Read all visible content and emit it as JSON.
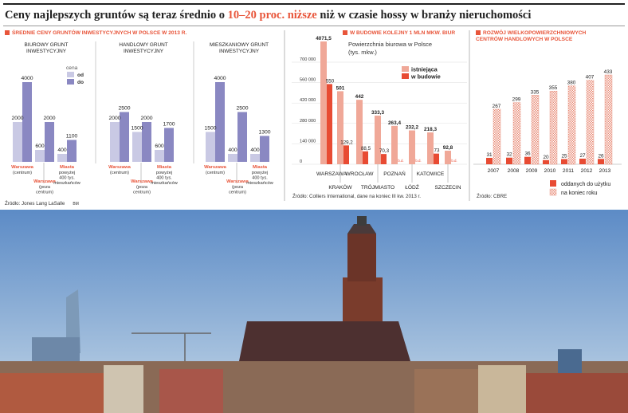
{
  "headline": {
    "before": "Ceny najlepszych gruntów są teraz średnio o ",
    "highlight": "10–20 proc. niższe",
    "after": " niż w czasie hossy w branży nieruchomości"
  },
  "sources": {
    "left": "Źródło: Jones Lang LaSalle",
    "left_tag": "BM",
    "middle": "Źródło: Colliers International, dane na koniec III kw. 2013 r.",
    "right": "Źródło: CBRE"
  },
  "colors": {
    "accent": "#e8553a",
    "bar_od": "#c9c9e4",
    "bar_do": "#8a88c2",
    "existing": "#f0a898",
    "building": "#e84b33"
  },
  "chart_data": [
    {
      "type": "bar",
      "title": "ŚREDNIE CENY GRUNTÓW INWESTYCYJNYCH W POLSCE W 2013 R.",
      "legend": {
        "title": "cena",
        "od": "od",
        "do": "do"
      },
      "panels": [
        {
          "name": "BIUROWY GRUNT INWESTYCYJNY",
          "groups": [
            {
              "od": 2000,
              "do": 4000
            },
            {
              "od": 600,
              "do": 2000
            },
            {
              "od": 400,
              "do": 1100
            }
          ]
        },
        {
          "name": "HANDLOWY GRUNT INWESTYCYJNY",
          "groups": [
            {
              "od": 2000,
              "do": 2500
            },
            {
              "od": 1500,
              "do": 2000
            },
            {
              "od": 600,
              "do": 1700
            }
          ]
        },
        {
          "name": "MIESZKANIOWY GRUNT INWESTYCYJNY",
          "groups": [
            {
              "od": 1500,
              "do": 4000
            },
            {
              "od": 400,
              "do": 2500
            },
            {
              "od": 400,
              "do": 1300
            }
          ]
        }
      ],
      "group_labels": [
        {
          "title": "Warszawa",
          "sub": "(centrum)"
        },
        {
          "title": "Warszawa",
          "sub": "(poza centrum)"
        },
        {
          "title": "Miasta",
          "sub": "powyżej 400 tys. mieszkańców"
        }
      ]
    },
    {
      "type": "bar",
      "title": "W BUDOWIE KOLEJNY 1 MLN MKW. BIUR",
      "subtitle": "Powierzchnia biurowa w Polsce (tys. mkw.)",
      "ytick_labels": [
        "700 000",
        "560 000",
        "420 000",
        "280 000",
        "140 000",
        "0"
      ],
      "series": [
        {
          "name": "istniejąca"
        },
        {
          "name": "w budowie"
        }
      ],
      "categories": [
        "WARSZAWA",
        "KRAKÓW",
        "WROCŁAW",
        "TRÓJMIASTO",
        "POZNAŃ",
        "ŁÓDŹ",
        "KATOWICE",
        "SZCZECIN"
      ],
      "existing": [
        4071.5,
        501,
        442,
        333.3,
        263.4,
        232.2,
        218.3,
        92.8
      ],
      "existing_labels": [
        "4071,5",
        "501",
        "442",
        "333,3",
        "263,4",
        "232,2",
        "218,3",
        "92,8"
      ],
      "building": [
        550,
        129.2,
        88.5,
        70.3,
        null,
        null,
        73,
        null
      ],
      "building_labels": [
        "550",
        "129,2",
        "88,5",
        "70,3",
        "b.d.",
        "b.d.",
        "73",
        "b.d."
      ]
    },
    {
      "type": "bar",
      "title": "ROZWÓJ WIELKOPOWIERZCHNIOWYCH CENTRÓW HANDLOWYCH W POLSCE",
      "categories": [
        "2007",
        "2008",
        "2009",
        "2010",
        "2011",
        "2012",
        "2013"
      ],
      "series": [
        {
          "name": "oddanych do użytku",
          "values": [
            31,
            32,
            36,
            20,
            25,
            27,
            26
          ]
        },
        {
          "name": "na koniec roku",
          "values": [
            267,
            299,
            335,
            355,
            380,
            407,
            433
          ]
        }
      ]
    }
  ]
}
